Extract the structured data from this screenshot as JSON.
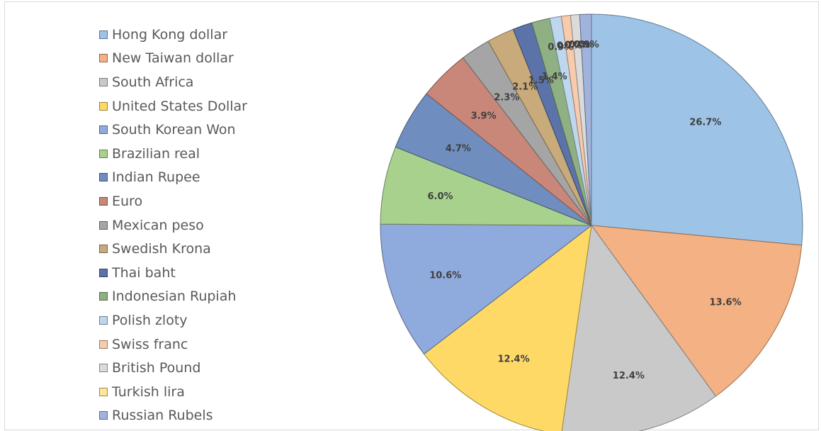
{
  "chart_data": {
    "type": "pie",
    "title": "",
    "legend_position": "left",
    "start_angle_deg": 0,
    "direction": "clockwise",
    "slices": [
      {
        "name": "Hong Kong dollar",
        "value": 26.7,
        "label": "26.7%",
        "color": "#9dc3e6"
      },
      {
        "name": "New Taiwan dollar",
        "value": 13.6,
        "label": "13.6%",
        "color": "#f4b183"
      },
      {
        "name": "South Africa",
        "value": 12.4,
        "label": "12.4%",
        "color": "#c9c9c9"
      },
      {
        "name": "United States Dollar",
        "value": 12.4,
        "label": "12.4%",
        "color": "#ffd966"
      },
      {
        "name": "South Korean Won",
        "value": 10.6,
        "label": "10.6%",
        "color": "#8faadc"
      },
      {
        "name": "Brazilian real",
        "value": 6.0,
        "label": "6.0%",
        "color": "#a9d18e"
      },
      {
        "name": "Indian Rupee",
        "value": 4.7,
        "label": "4.7%",
        "color": "#6f8ebf"
      },
      {
        "name": "Euro",
        "value": 3.9,
        "label": "3.9%",
        "color": "#c9877a"
      },
      {
        "name": "Mexican peso",
        "value": 2.3,
        "label": "2.3%",
        "color": "#a5a5a5"
      },
      {
        "name": "Swedish Krona",
        "value": 2.1,
        "label": "2.1%",
        "color": "#c9aa7a"
      },
      {
        "name": "Thai baht",
        "value": 1.5,
        "label": "1.5%",
        "color": "#5b73a8"
      },
      {
        "name": "Indonesian Rupiah",
        "value": 1.4,
        "label": "1.4%",
        "color": "#8fb083"
      },
      {
        "name": "Polish zloty",
        "value": 0.9,
        "label": "0.9%",
        "color": "#bdd7ee"
      },
      {
        "name": "Swiss franc",
        "value": 0.7,
        "label": "0.7%",
        "color": "#f8cbad"
      },
      {
        "name": "British Pound",
        "value": 0.7,
        "label": "0.7%",
        "color": "#dbdbdb"
      },
      {
        "name": "Turkish lira",
        "value": 0.0,
        "label": "0.0%",
        "color": "#ffe699"
      },
      {
        "name": "Russian Rubels",
        "value": 0.9,
        "label": "0.9%",
        "color": "#9fb3dd"
      }
    ]
  }
}
